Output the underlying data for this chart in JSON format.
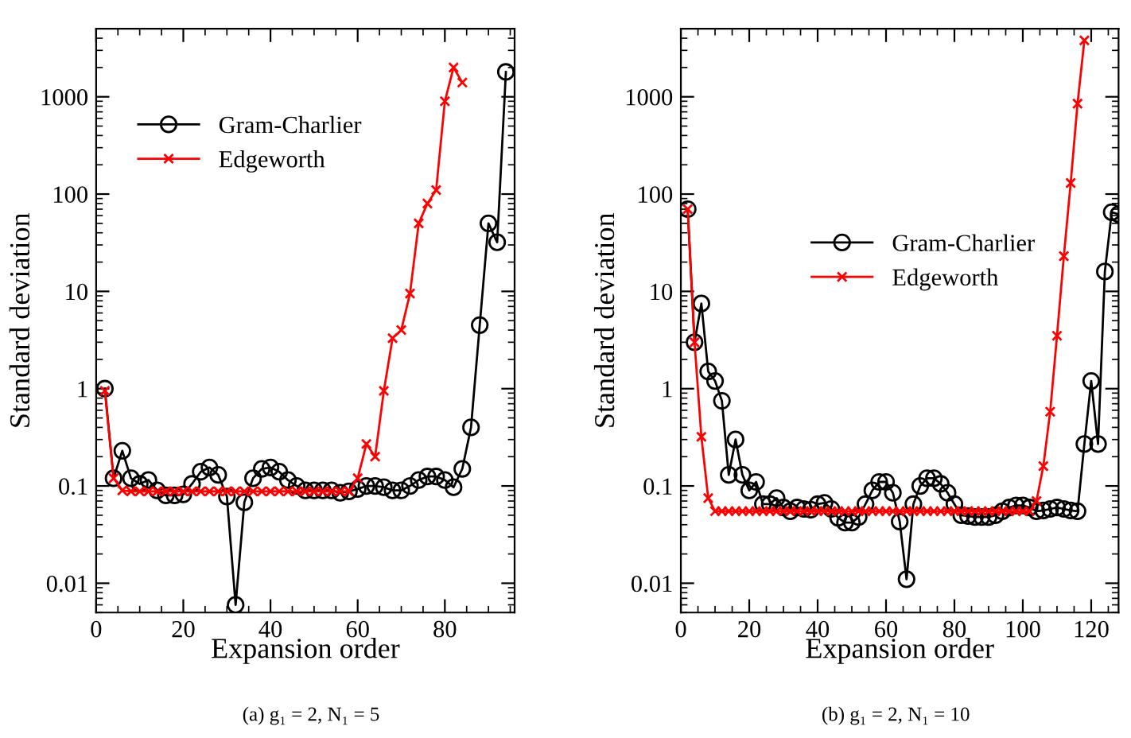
{
  "chart_data": [
    {
      "type": "line",
      "xlabel": "Expansion order",
      "ylabel": "Standard deviation",
      "log": "y",
      "xlim": [
        0,
        96
      ],
      "xticks": [
        0,
        20,
        40,
        60,
        80
      ],
      "ylim": [
        0.005,
        5000
      ],
      "yticks": [
        0.01,
        0.1,
        1,
        10,
        100,
        1000
      ],
      "grid": false,
      "legend": "top left",
      "annotations": [
        "(a) g₁ = 2, N₁ = 5"
      ],
      "series": [
        {
          "name": "Gram-Charlier",
          "color": "#000000",
          "marker": "circle",
          "x": [
            2,
            4,
            6,
            8,
            10,
            12,
            14,
            16,
            18,
            20,
            22,
            24,
            26,
            28,
            30,
            32,
            34,
            36,
            38,
            40,
            42,
            44,
            46,
            48,
            50,
            52,
            54,
            56,
            58,
            60,
            62,
            64,
            66,
            68,
            70,
            72,
            74,
            76,
            78,
            80,
            82,
            84,
            86,
            88,
            90,
            92,
            94
          ],
          "values": [
            1.0,
            0.12,
            0.23,
            0.12,
            0.105,
            0.115,
            0.09,
            0.08,
            0.08,
            0.082,
            0.105,
            0.14,
            0.155,
            0.13,
            0.078,
            0.006,
            0.068,
            0.12,
            0.15,
            0.155,
            0.14,
            0.115,
            0.1,
            0.09,
            0.09,
            0.09,
            0.09,
            0.085,
            0.088,
            0.093,
            0.1,
            0.1,
            0.097,
            0.09,
            0.09,
            0.1,
            0.115,
            0.125,
            0.125,
            0.115,
            0.097,
            0.15,
            0.4,
            4.5,
            50,
            32,
            1800
          ]
        },
        {
          "name": "Edgeworth",
          "color": "#ff0000",
          "marker": "cross",
          "x": [
            2,
            4,
            6,
            8,
            10,
            12,
            14,
            16,
            18,
            20,
            22,
            24,
            26,
            28,
            30,
            32,
            34,
            36,
            38,
            40,
            42,
            44,
            46,
            48,
            50,
            52,
            54,
            56,
            58,
            60,
            62,
            64,
            66,
            68,
            70,
            72,
            74,
            76,
            78,
            80,
            82,
            84
          ],
          "values": [
            0.95,
            0.12,
            0.09,
            0.088,
            0.088,
            0.088,
            0.088,
            0.088,
            0.088,
            0.088,
            0.088,
            0.088,
            0.088,
            0.088,
            0.088,
            0.088,
            0.088,
            0.088,
            0.088,
            0.088,
            0.088,
            0.088,
            0.088,
            0.088,
            0.088,
            0.088,
            0.088,
            0.088,
            0.088,
            0.12,
            0.27,
            0.2,
            0.95,
            3.3,
            4,
            9.5,
            50,
            80,
            110,
            900,
            2000,
            1400
          ]
        }
      ]
    },
    {
      "type": "line",
      "xlabel": "Expansion order",
      "ylabel": "Standard deviation",
      "log": "y",
      "xlim": [
        0,
        128
      ],
      "xticks": [
        0,
        20,
        40,
        60,
        80,
        100,
        120
      ],
      "ylim": [
        0.005,
        5000
      ],
      "yticks": [
        0.01,
        0.1,
        1,
        10,
        100,
        1000
      ],
      "grid": false,
      "legend": "center",
      "annotations": [
        "(b) g₁ = 2, N₁ = 10"
      ],
      "series": [
        {
          "name": "Gram-Charlier",
          "color": "#000000",
          "marker": "circle",
          "x": [
            2,
            4,
            6,
            8,
            10,
            12,
            14,
            16,
            18,
            20,
            22,
            24,
            26,
            28,
            30,
            32,
            34,
            36,
            38,
            40,
            42,
            44,
            46,
            48,
            50,
            52,
            54,
            56,
            58,
            60,
            62,
            64,
            66,
            68,
            70,
            72,
            74,
            76,
            78,
            80,
            82,
            84,
            86,
            88,
            90,
            92,
            94,
            96,
            98,
            100,
            102,
            104,
            106,
            108,
            110,
            112,
            114,
            116,
            118,
            120,
            122,
            124,
            126,
            128
          ],
          "values": [
            70,
            3,
            7.5,
            1.5,
            1.2,
            0.75,
            0.13,
            0.3,
            0.13,
            0.09,
            0.11,
            0.065,
            0.065,
            0.075,
            0.06,
            0.055,
            0.06,
            0.058,
            0.057,
            0.065,
            0.067,
            0.058,
            0.047,
            0.042,
            0.042,
            0.048,
            0.065,
            0.09,
            0.11,
            0.11,
            0.085,
            0.043,
            0.011,
            0.065,
            0.1,
            0.12,
            0.12,
            0.105,
            0.085,
            0.065,
            0.05,
            0.049,
            0.048,
            0.048,
            0.048,
            0.05,
            0.055,
            0.06,
            0.063,
            0.063,
            0.06,
            0.055,
            0.056,
            0.058,
            0.06,
            0.058,
            0.056,
            0.055,
            0.27,
            1.2,
            0.27,
            16,
            65,
            62
          ]
        },
        {
          "name": "Edgeworth",
          "color": "#ff0000",
          "marker": "cross",
          "x": [
            2,
            4,
            6,
            8,
            10,
            12,
            14,
            16,
            18,
            20,
            22,
            24,
            26,
            28,
            30,
            32,
            34,
            36,
            38,
            40,
            42,
            44,
            46,
            48,
            50,
            52,
            54,
            56,
            58,
            60,
            62,
            64,
            66,
            68,
            70,
            72,
            74,
            76,
            78,
            80,
            82,
            84,
            86,
            88,
            90,
            92,
            94,
            96,
            98,
            100,
            102,
            104,
            106,
            108,
            110,
            112,
            114,
            116,
            118
          ],
          "values": [
            70,
            3,
            0.32,
            0.075,
            0.055,
            0.055,
            0.055,
            0.055,
            0.055,
            0.055,
            0.055,
            0.055,
            0.055,
            0.055,
            0.055,
            0.055,
            0.055,
            0.055,
            0.055,
            0.055,
            0.055,
            0.055,
            0.055,
            0.055,
            0.055,
            0.055,
            0.055,
            0.055,
            0.055,
            0.055,
            0.055,
            0.055,
            0.055,
            0.055,
            0.055,
            0.055,
            0.055,
            0.055,
            0.055,
            0.055,
            0.055,
            0.055,
            0.055,
            0.055,
            0.055,
            0.055,
            0.055,
            0.055,
            0.055,
            0.055,
            0.055,
            0.07,
            0.16,
            0.58,
            3.5,
            23,
            130,
            850,
            3800
          ]
        }
      ]
    }
  ]
}
